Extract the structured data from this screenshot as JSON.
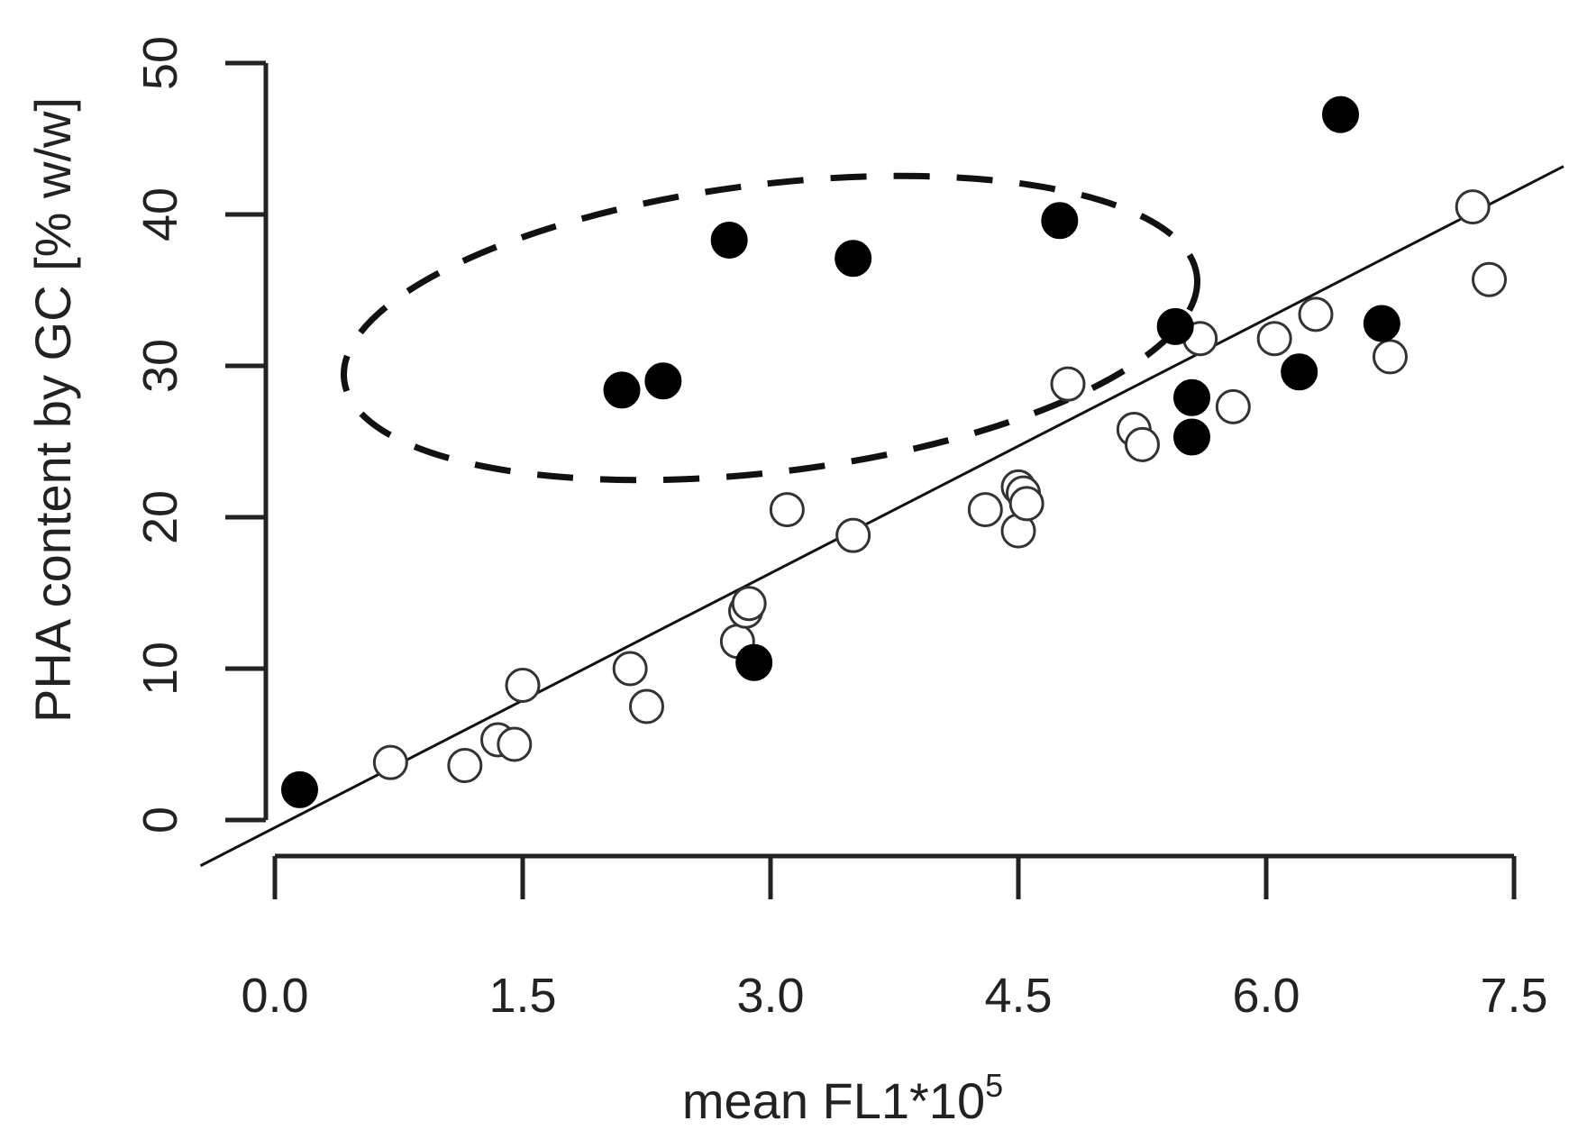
{
  "chart_data": {
    "type": "scatter",
    "xlabel": "mean FL1*10",
    "xlabel_superscript": "5",
    "ylabel": "PHA content by GC [% w/w]",
    "xlim": [
      0.0,
      7.5
    ],
    "ylim": [
      0,
      50
    ],
    "x_ticks": [
      "0.0",
      "1.5",
      "3.0",
      "4.5",
      "6.0",
      "7.5"
    ],
    "y_ticks": [
      "0",
      "10",
      "20",
      "30",
      "40",
      "50"
    ],
    "grid": false,
    "legend": "none",
    "regression_line": {
      "slope": 5.6,
      "intercept": -0.5
    },
    "highlight_ellipse": {
      "cx": 3.0,
      "cy": 32.5,
      "rx_units": 2.6,
      "ry_units": 9.5,
      "style": "dashed"
    },
    "series": [
      {
        "marker": "open-circle",
        "points": [
          [
            0.7,
            3.8
          ],
          [
            1.15,
            3.6
          ],
          [
            1.35,
            5.3
          ],
          [
            1.45,
            5.0
          ],
          [
            1.5,
            8.9
          ],
          [
            2.15,
            10.0
          ],
          [
            2.25,
            7.5
          ],
          [
            2.8,
            11.8
          ],
          [
            2.85,
            13.8
          ],
          [
            2.87,
            14.3
          ],
          [
            3.1,
            20.5
          ],
          [
            3.5,
            18.8
          ],
          [
            4.3,
            20.5
          ],
          [
            4.5,
            19.1
          ],
          [
            4.5,
            22.0
          ],
          [
            4.53,
            21.6
          ],
          [
            4.55,
            20.9
          ],
          [
            4.8,
            28.8
          ],
          [
            5.2,
            25.8
          ],
          [
            5.25,
            24.8
          ],
          [
            5.6,
            31.8
          ],
          [
            5.8,
            27.3
          ],
          [
            6.05,
            31.8
          ],
          [
            6.3,
            33.4
          ],
          [
            6.75,
            30.6
          ],
          [
            7.25,
            40.5
          ],
          [
            7.35,
            35.7
          ]
        ]
      },
      {
        "marker": "filled-circle",
        "points": [
          [
            0.15,
            2.0
          ],
          [
            2.1,
            28.4
          ],
          [
            2.35,
            29.0
          ],
          [
            2.75,
            38.3
          ],
          [
            2.9,
            10.4
          ],
          [
            3.5,
            37.1
          ],
          [
            4.75,
            39.6
          ],
          [
            5.45,
            32.6
          ],
          [
            5.55,
            27.9
          ],
          [
            5.55,
            25.3
          ],
          [
            6.2,
            29.6
          ],
          [
            6.45,
            46.6
          ],
          [
            6.7,
            32.8
          ]
        ]
      }
    ]
  }
}
